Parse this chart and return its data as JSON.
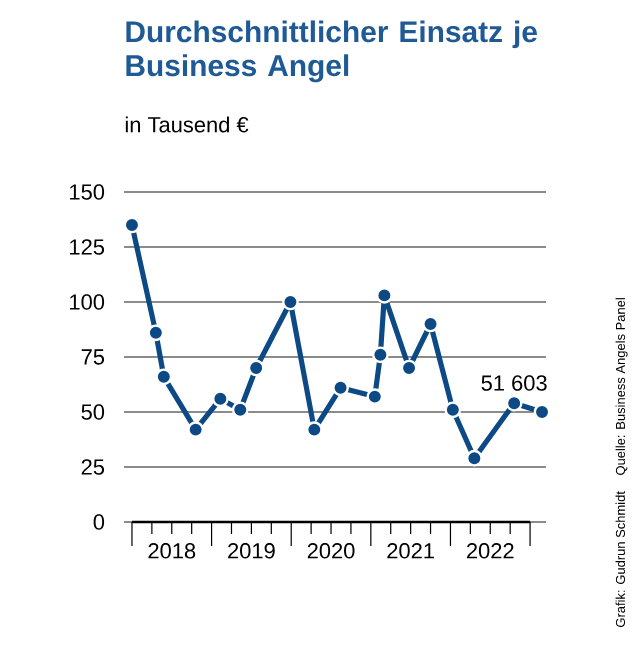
{
  "chart_data": {
    "type": "line",
    "title": "Durchschnittlicher Einsatz je Business Angel",
    "subtitle": "in Tausend €",
    "x": [
      2018.0,
      2018.3,
      2018.4,
      2018.8,
      2019.11,
      2019.36,
      2019.56,
      2019.99,
      2020.29,
      2020.62,
      2021.05,
      2021.12,
      2021.17,
      2021.48,
      2021.75,
      2022.03,
      2022.3,
      2022.8,
      2023.15
    ],
    "series": [
      {
        "color": "#0d4a85",
        "values": [
          135,
          86,
          66,
          42,
          56,
          51,
          70,
          100,
          42,
          61,
          57,
          76,
          103,
          70,
          90,
          51,
          29,
          54,
          50
        ]
      }
    ],
    "xlim": [
      2017.9,
      2023.2
    ],
    "xticks": [
      {
        "value": 2018,
        "label": null
      },
      {
        "value": 2018.25,
        "label": null
      },
      {
        "value": 2018.5,
        "label": "2018"
      },
      {
        "value": 2018.75,
        "label": null
      },
      {
        "value": 2019,
        "label": null
      },
      {
        "value": 2019.25,
        "label": null
      },
      {
        "value": 2019.5,
        "label": "2019"
      },
      {
        "value": 2019.75,
        "label": null
      },
      {
        "value": 2020,
        "label": null
      },
      {
        "value": 2020.25,
        "label": null
      },
      {
        "value": 2020.5,
        "label": "2020"
      },
      {
        "value": 2020.75,
        "label": null
      },
      {
        "value": 2021,
        "label": null
      },
      {
        "value": 2021.25,
        "label": null
      },
      {
        "value": 2021.5,
        "label": "2021"
      },
      {
        "value": 2021.75,
        "label": null
      },
      {
        "value": 2022,
        "label": null
      },
      {
        "value": 2022.25,
        "label": null
      },
      {
        "value": 2022.5,
        "label": "2022"
      },
      {
        "value": 2022.75,
        "label": null
      },
      {
        "value": 2023,
        "label": null
      }
    ],
    "ylim": [
      0,
      150
    ],
    "yticks": [
      0,
      25,
      50,
      75,
      100,
      125,
      150
    ],
    "grid": "y",
    "marker": "circle",
    "line_style": "solid",
    "annotations": [
      {
        "text": "51 603",
        "x": 2022.8,
        "y": 54
      },
      "Grafik: Gudrun Schmidt",
      "Quelle: Business Angels Panel"
    ]
  }
}
